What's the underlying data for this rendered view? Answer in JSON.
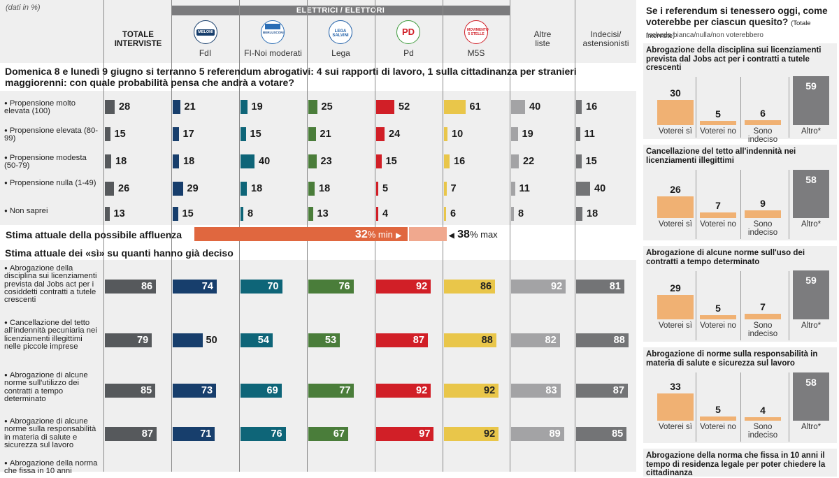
{
  "note": "(dati in %)",
  "group_header": "ELETTRICI / ELETTORI",
  "headers": {
    "totale": "TOTALE\nINTERVISTE",
    "fdi": "FdI",
    "fi": "FI-Noi moderati",
    "lega": "Lega",
    "pd": "Pd",
    "m5s": "M5S",
    "altre": "Altre\nliste",
    "indecisi": "Indecisi/\nastensionisti"
  },
  "logos": {
    "fdi_text": "MELONI",
    "fi_text": "BERLUSCONI",
    "lega_text": "LEGA SALVINI",
    "pd_text": "PD",
    "m5s_text": "MOVIMENTO 5 STELLE"
  },
  "question1": "Domenica 8 e lunedì 9 giugno si terranno 5 referendum abrogativi: 4 sui rapporti di lavoro, 1 sulla cittadinanza per stranieri maggiorenni: con quale probabilità pensa che andrà a votare?",
  "affluenza": {
    "label": "Stima attuale della possibile affluenza",
    "min_value": "32",
    "min_unit": "% min",
    "max_value": "38",
    "max_unit": "% max"
  },
  "section2": "Stima attuale dei «sì» su quanti hanno già deciso",
  "colors": {
    "totale": "#56595c",
    "fdi": "#173e6c",
    "fi": "#0e6578",
    "lega": "#4a7d3a",
    "pd": "#d11f27",
    "m5s": "#e9c64a",
    "altre": "#a3a3a5",
    "indecisi": "#737476",
    "panel_bg": "#efefef",
    "orange": "#f0b173",
    "grey_bar": "#7c7c7e",
    "affluenza": "#e0673f",
    "affluenza_light": "#f0a88e"
  },
  "chart_data": [
    {
      "type": "bar",
      "title": "Domenica 8 e lunedì 9 giugno si terranno 5 referendum abrogativi: 4 sui rapporti di lavoro, 1 sulla cittadinanza per stranieri maggiorenni: con quale probabilità pensa che andrà a votare?",
      "unit": "%",
      "columns": [
        "TOTALE INTERVISTE",
        "FdI",
        "FI-Noi moderati",
        "Lega",
        "Pd",
        "M5S",
        "Altre liste",
        "Indecisi/astensionisti"
      ],
      "rows": [
        {
          "label": "Propensione molto elevata (100)",
          "values": [
            28,
            21,
            19,
            25,
            52,
            61,
            40,
            16
          ]
        },
        {
          "label": "Propensione elevata (80-99)",
          "values": [
            15,
            17,
            15,
            21,
            24,
            10,
            19,
            11
          ]
        },
        {
          "label": "Propensione modesta (50-79)",
          "values": [
            18,
            18,
            40,
            23,
            15,
            16,
            22,
            15
          ]
        },
        {
          "label": "Propensione nulla (1-49)",
          "values": [
            26,
            29,
            18,
            18,
            5,
            7,
            11,
            40
          ]
        },
        {
          "label": "Non saprei",
          "values": [
            13,
            15,
            8,
            13,
            4,
            6,
            8,
            18
          ]
        }
      ]
    },
    {
      "type": "bar",
      "title": "Stima attuale dei «sì» su quanti hanno già deciso",
      "unit": "%",
      "columns": [
        "TOTALE INTERVISTE",
        "FdI",
        "FI-Noi moderati",
        "Lega",
        "Pd",
        "M5S",
        "Altre liste",
        "Indecisi/astensionisti"
      ],
      "rows": [
        {
          "label": "Abrogazione della disciplina sui licenziamenti prevista dal Jobs act per i cosiddetti contratti a tutele crescenti",
          "values": [
            86,
            74,
            70,
            76,
            92,
            86,
            92,
            81
          ]
        },
        {
          "label": "Cancellazione del tetto all'indennità pecuniaria nei licenziamenti illegittimi nelle piccole imprese",
          "values": [
            79,
            50,
            54,
            53,
            87,
            88,
            82,
            88
          ]
        },
        {
          "label": "Abrogazione di alcune norme sull'utilizzo dei contratti a tempo determinato",
          "values": [
            85,
            73,
            69,
            77,
            92,
            92,
            83,
            87
          ]
        },
        {
          "label": "Abrogazione di alcune norme sulla responsabilità in materia di salute e sicurezza sul lavoro",
          "values": [
            87,
            71,
            76,
            67,
            97,
            92,
            89,
            85
          ]
        },
        {
          "label": "Abrogazione della norma che fissa in 10 anni",
          "values": [
            null,
            null,
            null,
            null,
            null,
            null,
            null,
            null
          ]
        }
      ]
    },
    {
      "type": "bar",
      "title": "Se i referendum si tenessero oggi, come voterebbe per ciascun quesito?",
      "subtitle": "(Totale interviste)",
      "footnote": "*scheda bianca/nulla/non voterebbero",
      "categories": [
        "Voterei sì",
        "Voterei no",
        "Sono indeciso",
        "Altro*"
      ],
      "panels": [
        {
          "title": "Abrogazione della disciplina sui licenziamenti prevista dal Jobs act per i contratti a tutele crescenti",
          "values": [
            30,
            5,
            6,
            59
          ]
        },
        {
          "title": "Cancellazione del tetto all'indennità nei licenziamenti illegittimi",
          "values": [
            26,
            7,
            9,
            58
          ]
        },
        {
          "title": "Abrogazione di alcune norme sull'uso dei contratti a tempo determinato",
          "values": [
            29,
            5,
            7,
            59
          ]
        },
        {
          "title": "Abrogazione di norme sulla responsabilità in materia di salute e sicurezza sul lavoro",
          "values": [
            33,
            5,
            4,
            58
          ]
        },
        {
          "title": "Abrogazione della norma che fissa in 10 anni il tempo di residenza legale per poter chiedere la cittadinanza",
          "values": []
        }
      ]
    }
  ]
}
